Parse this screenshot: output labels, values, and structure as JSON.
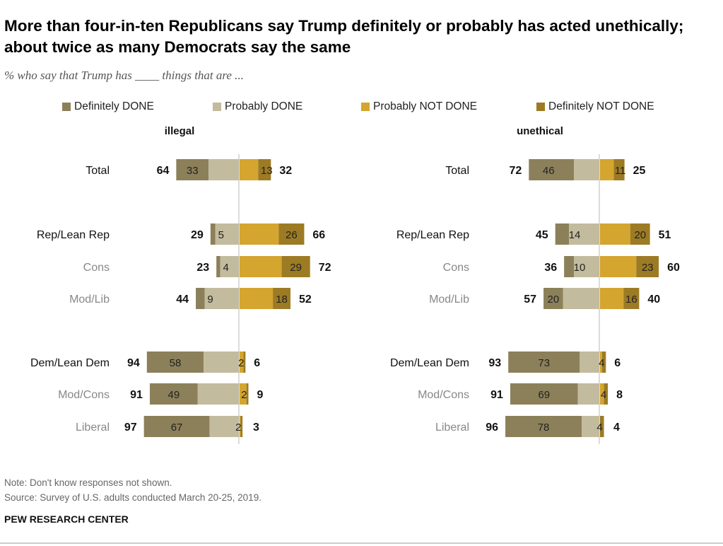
{
  "title": "More than four-in-ten Republicans say Trump definitely or probably has acted unethically; about twice as many Democrats say the same",
  "subtitle": "% who say that Trump has ____ things that are ...",
  "legend": [
    {
      "label": "Definitely DONE",
      "color": "#8c805a"
    },
    {
      "label": "Probably DONE",
      "color": "#c3bb9d"
    },
    {
      "label": "Probably NOT DONE",
      "color": "#d4a52f"
    },
    {
      "label": "Definitely NOT DONE",
      "color": "#9c7b24"
    }
  ],
  "note": "Note: Don't know responses not shown.",
  "source": "Source: Survey of U.S. adults conducted March 20-25, 2019.",
  "brand": "PEW RESEARCH CENTER",
  "chart_data": [
    {
      "type": "bar",
      "title": "illegal",
      "categories": [
        "Total",
        "Rep/Lean Rep",
        "Cons",
        "Mod/Lib",
        "Dem/Lean Dem",
        "Mod/Cons",
        "Liberal"
      ],
      "subgroup": [
        false,
        false,
        true,
        true,
        false,
        true,
        true
      ],
      "net_done": [
        64,
        29,
        23,
        44,
        94,
        91,
        97
      ],
      "definitely_done": [
        33,
        5,
        4,
        9,
        58,
        49,
        67
      ],
      "definitely_not_done": [
        13,
        26,
        29,
        18,
        2,
        2,
        2
      ],
      "net_not_done": [
        32,
        66,
        72,
        52,
        6,
        9,
        3
      ]
    },
    {
      "type": "bar",
      "title": "unethical",
      "categories": [
        "Total",
        "Rep/Lean Rep",
        "Cons",
        "Mod/Lib",
        "Dem/Lean Dem",
        "Mod/Cons",
        "Liberal"
      ],
      "subgroup": [
        false,
        false,
        true,
        true,
        false,
        true,
        true
      ],
      "net_done": [
        72,
        45,
        36,
        57,
        93,
        91,
        96
      ],
      "definitely_done": [
        46,
        14,
        10,
        20,
        73,
        69,
        78
      ],
      "definitely_not_done": [
        11,
        20,
        23,
        16,
        4,
        4,
        4
      ],
      "net_not_done": [
        25,
        51,
        60,
        40,
        6,
        8,
        4
      ]
    }
  ]
}
